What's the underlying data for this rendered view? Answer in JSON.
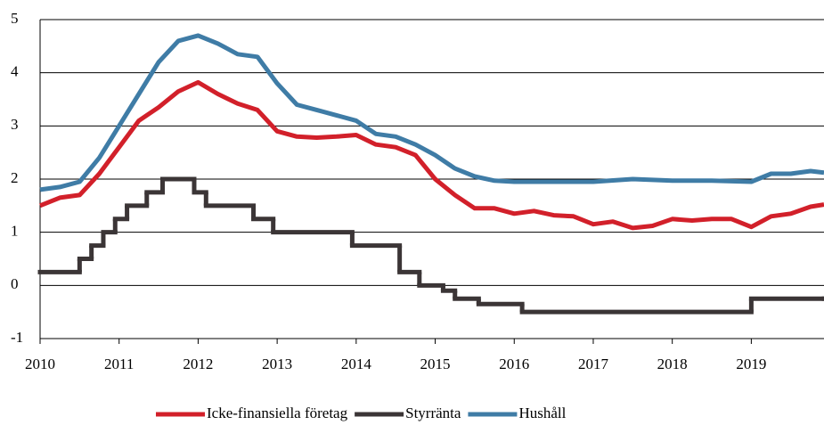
{
  "chart_data": {
    "type": "line",
    "xlim": [
      2010,
      2019.92
    ],
    "xticks": [
      2010,
      2011,
      2012,
      2013,
      2014,
      2015,
      2016,
      2017,
      2018,
      2019
    ],
    "ylim": [
      -1,
      5
    ],
    "yticks": [
      -1,
      0,
      1,
      2,
      3,
      4,
      5
    ],
    "grid": true,
    "legend": "bottom",
    "series": [
      {
        "name": "Icke-finansiella företag",
        "color": "#d2202a",
        "x": [
          2010,
          2010.25,
          2010.5,
          2010.75,
          2011,
          2011.25,
          2011.5,
          2011.75,
          2012,
          2012.25,
          2012.5,
          2012.75,
          2013,
          2013.25,
          2013.5,
          2013.75,
          2014,
          2014.25,
          2014.5,
          2014.75,
          2015,
          2015.25,
          2015.5,
          2015.75,
          2016,
          2016.25,
          2016.5,
          2016.75,
          2017,
          2017.25,
          2017.5,
          2017.75,
          2018,
          2018.25,
          2018.5,
          2018.75,
          2019,
          2019.25,
          2019.5,
          2019.75,
          2019.92
        ],
        "values": [
          1.5,
          1.65,
          1.7,
          2.1,
          2.6,
          3.1,
          3.35,
          3.65,
          3.82,
          3.6,
          3.42,
          3.3,
          2.9,
          2.8,
          2.78,
          2.8,
          2.83,
          2.65,
          2.6,
          2.45,
          2.0,
          1.7,
          1.45,
          1.45,
          1.35,
          1.4,
          1.32,
          1.3,
          1.15,
          1.2,
          1.08,
          1.12,
          1.25,
          1.22,
          1.25,
          1.25,
          1.1,
          1.3,
          1.35,
          1.48,
          1.52
        ]
      },
      {
        "name": "Styrränta",
        "color": "#3b3536",
        "step": true,
        "x": [
          2010,
          2010.5,
          2010.65,
          2010.8,
          2010.95,
          2011.1,
          2011.35,
          2011.55,
          2011.95,
          2012.1,
          2012.7,
          2012.95,
          2013.95,
          2014.55,
          2014.8,
          2015.1,
          2015.25,
          2015.55,
          2016.1,
          2019.0,
          2019.92
        ],
        "values": [
          0.25,
          0.5,
          0.75,
          1.0,
          1.25,
          1.5,
          1.75,
          2.0,
          1.75,
          1.5,
          1.25,
          1.0,
          0.75,
          0.25,
          0,
          -0.1,
          -0.25,
          -0.35,
          -0.5,
          -0.25,
          -0.25
        ]
      },
      {
        "name": "Hushåll",
        "color": "#3f7ca6",
        "x": [
          2010,
          2010.25,
          2010.5,
          2010.75,
          2011,
          2011.25,
          2011.5,
          2011.75,
          2012,
          2012.25,
          2012.5,
          2012.75,
          2013,
          2013.25,
          2013.5,
          2013.75,
          2014,
          2014.25,
          2014.5,
          2014.75,
          2015,
          2015.25,
          2015.5,
          2015.75,
          2016,
          2016.5,
          2017,
          2017.5,
          2018,
          2018.5,
          2019,
          2019.25,
          2019.5,
          2019.75,
          2019.92
        ],
        "values": [
          1.8,
          1.85,
          1.95,
          2.4,
          3.0,
          3.6,
          4.2,
          4.6,
          4.7,
          4.55,
          4.35,
          4.3,
          3.8,
          3.4,
          3.3,
          3.2,
          3.1,
          2.85,
          2.8,
          2.65,
          2.45,
          2.2,
          2.05,
          1.97,
          1.95,
          1.95,
          1.95,
          2.0,
          1.97,
          1.97,
          1.95,
          2.1,
          2.1,
          2.15,
          2.12
        ]
      }
    ]
  }
}
